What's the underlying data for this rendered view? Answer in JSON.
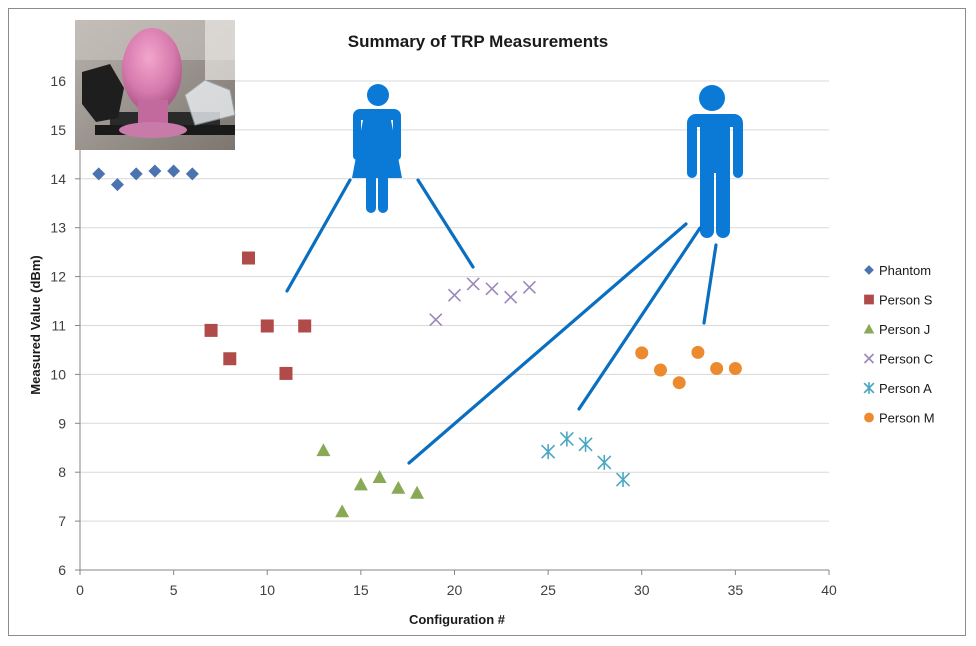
{
  "chart_data": {
    "type": "scatter",
    "title": "Summary of TRP Measurements",
    "xlabel": "Configuration #",
    "ylabel": "Measured Value (dBm)",
    "xlim": [
      0,
      40
    ],
    "ylim": [
      6,
      16
    ],
    "xticks": [
      0,
      5,
      10,
      15,
      20,
      25,
      30,
      35,
      40
    ],
    "yticks": [
      6,
      7,
      8,
      9,
      10,
      11,
      12,
      13,
      14,
      15,
      16
    ],
    "grid": "horizontal",
    "legend_position": "right",
    "series": [
      {
        "name": "Phantom",
        "marker": "diamond",
        "color": "#4a73b0",
        "x": [
          1,
          2,
          3,
          4,
          5,
          6
        ],
        "y": [
          14.1,
          13.88,
          14.1,
          14.16,
          14.16,
          14.1
        ]
      },
      {
        "name": "Person S",
        "marker": "square",
        "color": "#b14b49",
        "x": [
          7,
          8,
          9,
          10,
          11,
          12
        ],
        "y": [
          10.9,
          10.32,
          12.38,
          10.99,
          10.02,
          10.99
        ]
      },
      {
        "name": "Person J",
        "marker": "triangle",
        "color": "#8aa954",
        "x": [
          13,
          14,
          15,
          16,
          17,
          18
        ],
        "y": [
          8.45,
          7.2,
          7.75,
          7.9,
          7.68,
          7.58
        ]
      },
      {
        "name": "Person C",
        "marker": "x",
        "color": "#9d87bb",
        "x": [
          19,
          20,
          21,
          22,
          23,
          24
        ],
        "y": [
          11.12,
          11.62,
          11.85,
          11.75,
          11.58,
          11.78
        ]
      },
      {
        "name": "Person A",
        "marker": "asterisk",
        "color": "#4ba7c2",
        "x": [
          25,
          26,
          27,
          28,
          29
        ],
        "y": [
          8.42,
          8.68,
          8.57,
          8.2,
          7.85
        ]
      },
      {
        "name": "Person M",
        "marker": "circle",
        "color": "#ec8a2f",
        "x": [
          30,
          31,
          32,
          33,
          34,
          35
        ],
        "y": [
          10.44,
          10.09,
          9.83,
          10.45,
          10.12,
          10.12
        ]
      }
    ],
    "annotations": [
      {
        "type": "female-figure-icon",
        "color": "#0a7ad6",
        "connects_to": [
          "Person S",
          "Person C"
        ]
      },
      {
        "type": "male-figure-icon",
        "color": "#0a7ad6",
        "connects_to": [
          "Person J",
          "Person A",
          "Person M"
        ]
      },
      {
        "type": "inset-photo",
        "description_icon": "phantom-head-photo"
      }
    ]
  }
}
